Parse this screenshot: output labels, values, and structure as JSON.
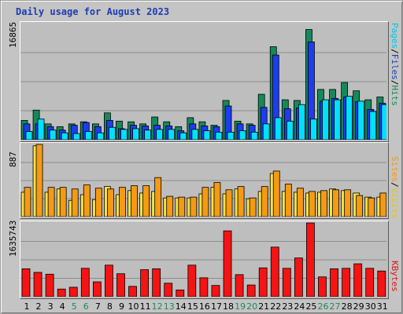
{
  "title": "Daily usage for August 2023",
  "colors": {
    "pages": "#00e0ff",
    "files": "#1e3cf0",
    "hits": "#148a5a",
    "visits": "#f4e244",
    "sites": "#f49a14",
    "kbytes": "#f41414",
    "weekend": "#1e8a5a",
    "weekday": "#000000",
    "title": "#1e3cb4"
  },
  "legend": {
    "top": [
      {
        "label": "Pages",
        "color": "#00c8e6"
      },
      {
        "label": "/",
        "color": "#000000"
      },
      {
        "label": "Files",
        "color": "#1e3cb4"
      },
      {
        "label": "/",
        "color": "#000000"
      },
      {
        "label": "Hits",
        "color": "#148a5a"
      }
    ],
    "middle": [
      {
        "label": "Sites",
        "color": "#f49a14"
      },
      {
        "label": "/",
        "color": "#000000"
      },
      {
        "label": "Visits",
        "color": "#d8c82c"
      }
    ],
    "bottom": [
      {
        "label": "KBytes",
        "color": "#e01414"
      }
    ]
  },
  "chart_data": [
    {
      "type": "bar",
      "panel": "hits-files-pages",
      "ymax_label": "16865",
      "ylim": [
        0,
        16865
      ],
      "categories": [
        "1",
        "2",
        "3",
        "4",
        "5",
        "6",
        "7",
        "8",
        "9",
        "10",
        "11",
        "12",
        "13",
        "14",
        "15",
        "16",
        "17",
        "18",
        "19",
        "20",
        "21",
        "22",
        "23",
        "24",
        "25",
        "26",
        "27",
        "28",
        "29",
        "30",
        "31"
      ],
      "weekend_days": [
        5,
        6,
        12,
        13,
        19,
        20,
        26,
        27
      ],
      "series": [
        {
          "name": "Hits",
          "values": [
            2800,
            4300,
            2300,
            1900,
            2300,
            2600,
            2300,
            3900,
            2700,
            2600,
            2300,
            3300,
            2600,
            1900,
            3200,
            2600,
            2100,
            5700,
            2700,
            2300,
            6600,
            13500,
            5800,
            5700,
            16000,
            7300,
            7300,
            8300,
            7100,
            5800,
            6200
          ]
        },
        {
          "name": "Files",
          "values": [
            2300,
            2300,
            1900,
            1400,
            2100,
            2500,
            1900,
            2800,
            1600,
            2100,
            2000,
            2100,
            2000,
            1300,
            2300,
            2000,
            1900,
            4900,
            2300,
            2100,
            4700,
            12300,
            4500,
            4600,
            14200,
            5600,
            6000,
            6200,
            5500,
            4400,
            5300
          ]
        },
        {
          "name": "Pages",
          "values": [
            1200,
            3000,
            1400,
            1000,
            900,
            1200,
            1000,
            1800,
            1500,
            1600,
            1400,
            1500,
            1500,
            1000,
            1500,
            1300,
            1100,
            1100,
            1300,
            1100,
            2300,
            3200,
            2700,
            5100,
            3000,
            5800,
            5800,
            6300,
            5600,
            4100,
            5100
          ]
        }
      ]
    },
    {
      "type": "bar",
      "panel": "visits-sites",
      "ymax_label": "887",
      "ylim": [
        0,
        887
      ],
      "categories": [
        "1",
        "2",
        "3",
        "4",
        "5",
        "6",
        "7",
        "8",
        "9",
        "10",
        "11",
        "12",
        "13",
        "14",
        "15",
        "16",
        "17",
        "18",
        "19",
        "20",
        "21",
        "22",
        "23",
        "24",
        "25",
        "26",
        "27",
        "28",
        "29",
        "30",
        "31"
      ],
      "series": [
        {
          "name": "Visits",
          "values": [
            300,
            870,
            300,
            340,
            200,
            270,
            210,
            370,
            270,
            320,
            290,
            310,
            230,
            230,
            230,
            280,
            360,
            280,
            340,
            220,
            310,
            530,
            310,
            300,
            290,
            300,
            340,
            320,
            290,
            240,
            240
          ]
        },
        {
          "name": "Sites",
          "values": [
            360,
            887,
            360,
            360,
            340,
            390,
            350,
            340,
            360,
            380,
            380,
            480,
            250,
            240,
            240,
            360,
            420,
            330,
            370,
            230,
            370,
            560,
            400,
            350,
            310,
            320,
            330,
            330,
            260,
            230,
            290
          ]
        }
      ]
    },
    {
      "type": "bar",
      "panel": "kbytes",
      "ymax_label": "1635743",
      "ylim": [
        0,
        1635743
      ],
      "categories": [
        "1",
        "2",
        "3",
        "4",
        "5",
        "6",
        "7",
        "8",
        "9",
        "10",
        "11",
        "12",
        "13",
        "14",
        "15",
        "16",
        "17",
        "18",
        "19",
        "20",
        "21",
        "22",
        "23",
        "24",
        "25",
        "26",
        "27",
        "28",
        "29",
        "30",
        "31"
      ],
      "series": [
        {
          "name": "KBytes",
          "values": [
            620000,
            540000,
            500000,
            170000,
            210000,
            630000,
            330000,
            700000,
            510000,
            230000,
            600000,
            620000,
            300000,
            150000,
            700000,
            420000,
            250000,
            1460000,
            490000,
            260000,
            640000,
            1100000,
            630000,
            860000,
            1635743,
            440000,
            620000,
            630000,
            730000,
            630000,
            570000
          ]
        }
      ]
    }
  ]
}
